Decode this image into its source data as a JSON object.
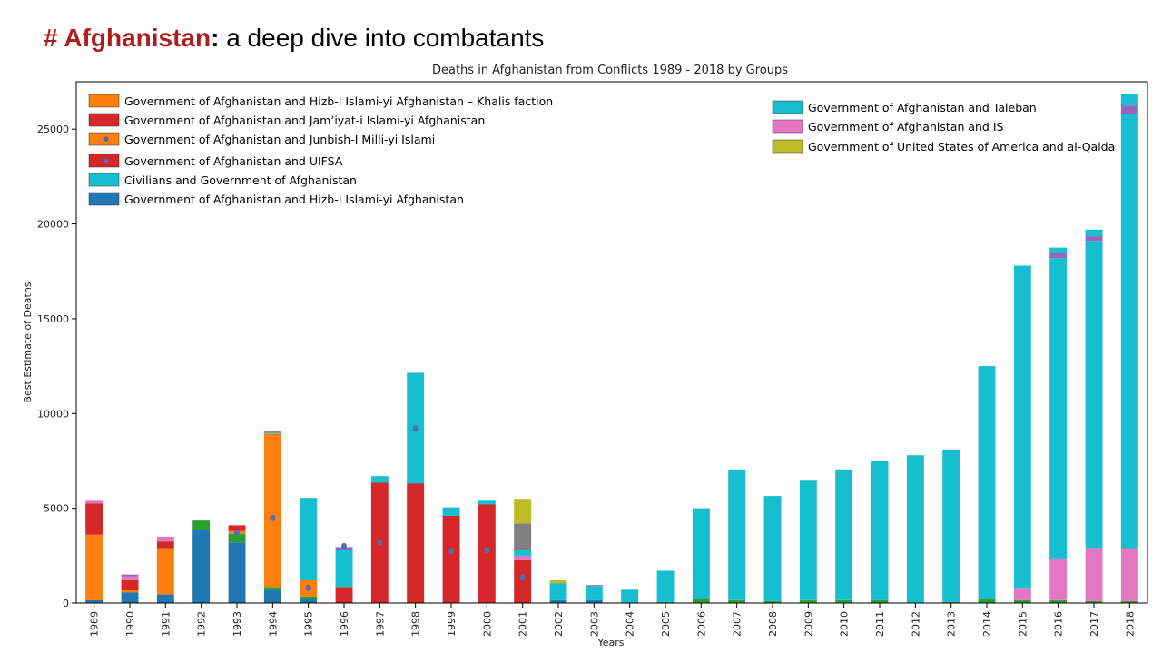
{
  "slide": {
    "title_hash": "# Afghanistan",
    "title_colon": ":",
    "title_rest": " a deep dive into combatants",
    "accent_color": "#b01c1c"
  },
  "chart_data": {
    "type": "bar",
    "stacked": true,
    "title": "Deaths in Afghanistan from Conflicts 1989 - 2018 by Groups",
    "xlabel": "Years",
    "ylabel": "Best Estimate of Deaths",
    "ylim": [
      0,
      27500
    ],
    "yticks": [
      0,
      5000,
      10000,
      15000,
      20000,
      25000
    ],
    "categories": [
      "1989",
      "1990",
      "1991",
      "1992",
      "1993",
      "1994",
      "1995",
      "1996",
      "1997",
      "1998",
      "1999",
      "2000",
      "2001",
      "2002",
      "2003",
      "2004",
      "2005",
      "2006",
      "2007",
      "2008",
      "2009",
      "2010",
      "2011",
      "2012",
      "2013",
      "2014",
      "2015",
      "2016",
      "2017",
      "2018"
    ],
    "series": [
      {
        "name": "Government of Afghanistan and Hizb-I Islami-yi Afghanistan",
        "color": "#1f77b4",
        "values": [
          150,
          550,
          450,
          3850,
          3200,
          700,
          200,
          0,
          0,
          0,
          0,
          0,
          0,
          150,
          150,
          0,
          0,
          0,
          0,
          0,
          0,
          0,
          0,
          0,
          0,
          0,
          0,
          0,
          0,
          0
        ]
      },
      {
        "name": "",
        "color": "#2ca02c",
        "values": [
          0,
          0,
          0,
          500,
          450,
          150,
          150,
          0,
          0,
          0,
          0,
          0,
          0,
          0,
          0,
          0,
          50,
          200,
          150,
          100,
          150,
          150,
          150,
          0,
          50,
          200,
          150,
          150,
          100,
          100
        ]
      },
      {
        "name": "Government of Afghanistan and Junbish-I Milli-yi Islami",
        "color": "#ff7f0e",
        "values": [
          3450,
          150,
          2450,
          0,
          150,
          8100,
          900,
          0,
          0,
          0,
          0,
          0,
          0,
          0,
          0,
          0,
          0,
          0,
          0,
          0,
          0,
          0,
          0,
          0,
          0,
          0,
          0,
          0,
          0,
          0
        ]
      },
      {
        "name": "Government of Afghanistan and UIFSA",
        "color": "#d62728",
        "values": [
          1650,
          550,
          350,
          0,
          300,
          0,
          0,
          850,
          6350,
          6300,
          4600,
          5200,
          2300,
          0,
          0,
          0,
          0,
          0,
          0,
          0,
          0,
          0,
          0,
          0,
          0,
          0,
          0,
          0,
          0,
          0
        ]
      },
      {
        "name": "",
        "color": "#e377c2",
        "values": [
          150,
          150,
          250,
          0,
          0,
          0,
          0,
          0,
          0,
          0,
          0,
          0,
          200,
          0,
          0,
          0,
          0,
          0,
          0,
          0,
          0,
          0,
          0,
          0,
          0,
          0,
          650,
          2200,
          2800,
          2800
        ]
      },
      {
        "name": "Civilians and Government of Afghanistan",
        "color": "#17becf",
        "values": [
          0,
          0,
          0,
          0,
          0,
          50,
          4300,
          1950,
          350,
          5850,
          450,
          200,
          300,
          900,
          750,
          750,
          1650,
          4800,
          6900,
          5550,
          6350,
          6900,
          7350,
          7800,
          8050,
          12300,
          16650,
          15850,
          16200,
          22900
        ]
      },
      {
        "name": "",
        "color": "#9467bd",
        "values": [
          0,
          100,
          0,
          0,
          0,
          50,
          0,
          150,
          0,
          0,
          0,
          0,
          0,
          0,
          50,
          0,
          0,
          0,
          0,
          0,
          0,
          0,
          0,
          0,
          0,
          0,
          0,
          250,
          250,
          450
        ]
      },
      {
        "name": "",
        "color": "#7f7f7f",
        "values": [
          0,
          0,
          0,
          0,
          0,
          0,
          0,
          0,
          0,
          0,
          0,
          0,
          1400,
          0,
          0,
          0,
          0,
          0,
          0,
          0,
          0,
          0,
          0,
          0,
          0,
          0,
          0,
          0,
          0,
          0
        ]
      },
      {
        "name": "",
        "color": "#bcbd22",
        "values": [
          0,
          0,
          0,
          0,
          0,
          0,
          0,
          0,
          0,
          0,
          0,
          0,
          1300,
          150,
          0,
          0,
          0,
          0,
          0,
          0,
          0,
          0,
          0,
          0,
          0,
          0,
          0,
          0,
          0,
          0
        ]
      },
      {
        "name": "",
        "color": "#17becf",
        "values": [
          0,
          0,
          0,
          0,
          0,
          0,
          0,
          0,
          0,
          0,
          0,
          0,
          0,
          0,
          0,
          0,
          0,
          0,
          0,
          0,
          0,
          0,
          0,
          0,
          0,
          0,
          350,
          300,
          350,
          600
        ]
      }
    ],
    "markers": [
      {
        "year": "1993",
        "value": 3700
      },
      {
        "year": "1994",
        "value": 4500
      },
      {
        "year": "1995",
        "value": 800
      },
      {
        "year": "1996",
        "value": 3000
      },
      {
        "year": "1997",
        "value": 3200
      },
      {
        "year": "1998",
        "value": 9200
      },
      {
        "year": "1999",
        "value": 2750
      },
      {
        "year": "2000",
        "value": 2800
      },
      {
        "year": "2001",
        "value": 1350
      }
    ],
    "marker_color": "#4f6fb5",
    "legend_left": [
      {
        "label": "Government of Afghanistan and Hizb-I Islami-yi Afghanistan – Khalis faction",
        "color": "#ff7f0e",
        "marker": false
      },
      {
        "label": "Government of Afghanistan and Jam’iyat-i Islami-yi Afghanistan",
        "color": "#d62728",
        "marker": false
      },
      {
        "label": "Government of Afghanistan and Junbish-I Milli-yi Islami",
        "color": "#ff7f0e",
        "marker": true
      },
      {
        "label": "Government of Afghanistan and UIFSA",
        "color": "#d62728",
        "marker": true
      },
      {
        "label": "Civilians and Government of Afghanistan",
        "color": "#17becf",
        "marker": false
      },
      {
        "label": "Government of Afghanistan and Hizb-I Islami-yi Afghanistan",
        "color": "#1f77b4",
        "marker": false
      }
    ],
    "legend_right": [
      {
        "label": "Government of Afghanistan and Taleban",
        "color": "#17becf"
      },
      {
        "label": "Government of Afghanistan and IS",
        "color": "#e377c2"
      },
      {
        "label": "Government of United States of America and al-Qaida",
        "color": "#bcbd22"
      }
    ],
    "legend_placement": [
      "top-left",
      "top-right"
    ],
    "grid": false
  }
}
